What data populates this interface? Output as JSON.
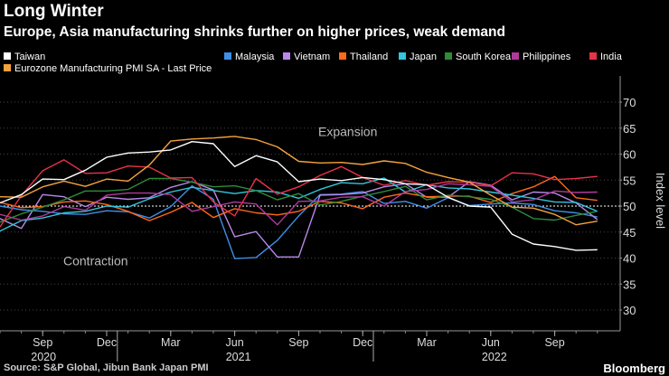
{
  "header": {
    "title": "Long Winter",
    "subtitle": "Europe, Asia manufacturing shrinks further on higher prices, weak demand"
  },
  "footer": {
    "source": "Source: S&P Global, Jibun Bank Japan PMI",
    "brand": "Bloomberg"
  },
  "chart_data": {
    "type": "line",
    "ylabel": "Index level",
    "ylim": [
      26,
      74
    ],
    "yticks": [
      30,
      35,
      40,
      45,
      50,
      55,
      60,
      65,
      70
    ],
    "x_start": "2020-07",
    "x_end": "2022-11",
    "x_months": [
      "Jul 2020",
      "Aug 2020",
      "Sep 2020",
      "Oct 2020",
      "Nov 2020",
      "Dec 2020",
      "Jan 2021",
      "Feb 2021",
      "Mar 2021",
      "Apr 2021",
      "May 2021",
      "Jun 2021",
      "Jul 2021",
      "Aug 2021",
      "Sep 2021",
      "Oct 2021",
      "Nov 2021",
      "Dec 2021",
      "Jan 2022",
      "Feb 2022",
      "Mar 2022",
      "Apr 2022",
      "May 2022",
      "Jun 2022",
      "Jul 2022",
      "Aug 2022",
      "Sep 2022",
      "Oct 2022",
      "Nov 2022"
    ],
    "x_tick_labels": [
      "Sep",
      "Dec",
      "Mar",
      "Jun",
      "Sep",
      "Dec",
      "Mar",
      "Jun",
      "Sep"
    ],
    "x_year_labels": [
      "2020",
      "2021",
      "2022"
    ],
    "reference_line": 50,
    "annotations": [
      "Expansion",
      "Contraction"
    ],
    "series": [
      {
        "name": "Taiwan",
        "color": "#ffffff",
        "values": [
          50.6,
          52.2,
          55.2,
          55.1,
          56.9,
          59.4,
          60.2,
          60.4,
          60.8,
          62.4,
          62.0,
          57.6,
          59.7,
          58.5,
          54.7,
          55.2,
          54.9,
          55.5,
          55.1,
          54.3,
          54.1,
          51.7,
          50.0,
          49.8,
          44.6,
          42.7,
          42.2,
          41.5,
          41.6
        ]
      },
      {
        "name": "Eurozone Manufacturing PMI SA - Last Price",
        "color": "#f5a33c",
        "values": [
          51.8,
          51.7,
          53.7,
          54.8,
          53.8,
          55.2,
          54.8,
          57.9,
          62.5,
          62.9,
          63.1,
          63.4,
          62.8,
          61.4,
          58.6,
          58.3,
          58.4,
          58.0,
          58.7,
          58.2,
          56.5,
          55.5,
          54.6,
          52.1,
          49.8,
          49.6,
          48.4,
          46.4,
          47.1
        ]
      },
      {
        "name": "Malaysia",
        "color": "#3f8fe6",
        "values": [
          50.0,
          49.3,
          49.0,
          48.5,
          48.4,
          49.1,
          48.9,
          47.7,
          49.9,
          53.9,
          51.3,
          39.9,
          40.1,
          43.4,
          48.1,
          52.2,
          52.3,
          52.8,
          50.5,
          50.9,
          49.6,
          51.6,
          50.1,
          50.4,
          50.6,
          50.3,
          49.1,
          48.7,
          47.9
        ]
      },
      {
        "name": "Vietnam",
        "color": "#b889ea",
        "values": [
          47.6,
          45.7,
          52.2,
          51.8,
          49.9,
          51.7,
          51.3,
          51.6,
          53.6,
          54.7,
          53.1,
          44.1,
          45.1,
          40.2,
          40.2,
          52.1,
          52.2,
          52.5,
          53.7,
          54.3,
          51.7,
          51.7,
          54.7,
          54.0,
          51.2,
          52.7,
          52.5,
          50.6,
          47.4
        ]
      },
      {
        "name": "Thailand",
        "color": "#ff6a1a",
        "values": [
          50.7,
          49.7,
          49.9,
          50.8,
          51.0,
          50.3,
          49.0,
          47.2,
          48.8,
          50.7,
          47.8,
          49.5,
          48.7,
          48.3,
          49.0,
          50.9,
          50.6,
          49.5,
          51.7,
          52.5,
          51.8,
          51.9,
          51.9,
          50.7,
          52.4,
          53.7,
          55.7,
          51.6,
          51.1
        ]
      },
      {
        "name": "Japan",
        "color": "#33c6dc",
        "values": [
          45.2,
          47.2,
          47.7,
          48.7,
          49.0,
          50.0,
          49.8,
          51.4,
          52.7,
          53.6,
          53.0,
          52.4,
          53.0,
          52.7,
          51.5,
          53.2,
          54.5,
          54.3,
          55.4,
          52.7,
          54.1,
          53.5,
          53.3,
          52.7,
          52.1,
          51.5,
          50.8,
          50.7,
          49.0
        ]
      },
      {
        "name": "South Korea",
        "color": "#2e8b3a",
        "values": [
          46.9,
          48.5,
          49.8,
          51.2,
          52.9,
          52.9,
          53.2,
          55.3,
          55.3,
          54.6,
          53.7,
          53.9,
          53.0,
          51.2,
          52.4,
          50.2,
          50.9,
          51.9,
          52.8,
          53.8,
          51.2,
          52.1,
          51.8,
          51.3,
          49.8,
          47.6,
          47.3,
          48.2,
          49.0
        ]
      },
      {
        "name": "Philippines",
        "color": "#b03a9c",
        "values": [
          48.4,
          47.3,
          48.1,
          49.9,
          49.2,
          52.1,
          52.5,
          52.5,
          52.2,
          49.0,
          49.9,
          50.8,
          50.4,
          46.4,
          50.9,
          51.0,
          51.7,
          51.8,
          50.0,
          52.8,
          53.2,
          54.3,
          54.1,
          53.8,
          50.8,
          51.2,
          52.9,
          52.6,
          52.7
        ]
      },
      {
        "name": "India",
        "color": "#e8324a",
        "values": [
          46.0,
          52.0,
          56.8,
          58.9,
          56.3,
          56.4,
          57.7,
          57.5,
          55.4,
          55.5,
          50.8,
          48.1,
          55.3,
          52.3,
          53.7,
          55.9,
          57.6,
          55.5,
          54.0,
          54.9,
          54.0,
          54.7,
          54.6,
          53.9,
          56.4,
          56.2,
          55.1,
          55.3,
          55.7
        ]
      }
    ]
  }
}
